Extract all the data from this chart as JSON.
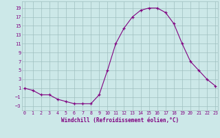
{
  "x": [
    0,
    1,
    2,
    3,
    4,
    5,
    6,
    7,
    8,
    9,
    10,
    11,
    12,
    13,
    14,
    15,
    16,
    17,
    18,
    19,
    20,
    21,
    22,
    23
  ],
  "y": [
    1,
    0.5,
    -0.5,
    -0.5,
    -1.5,
    -2,
    -2.5,
    -2.5,
    -2.5,
    -0.5,
    5,
    11,
    14.5,
    17,
    18.5,
    19,
    19,
    18,
    15.5,
    11,
    7,
    5,
    3,
    1.5
  ],
  "line_color": "#800080",
  "marker": "+",
  "bg_color": "#cce8e8",
  "grid_color": "#9fbfbf",
  "xlabel": "Windchill (Refroidissement éolien,°C)",
  "xlabel_color": "#800080",
  "tick_color": "#800080",
  "yticks": [
    -3,
    -1,
    1,
    3,
    5,
    7,
    9,
    11,
    13,
    15,
    17,
    19
  ],
  "xticks": [
    0,
    1,
    2,
    3,
    4,
    5,
    6,
    7,
    8,
    9,
    10,
    11,
    12,
    13,
    14,
    15,
    16,
    17,
    18,
    19,
    20,
    21,
    22,
    23
  ],
  "ylim": [
    -4,
    20.5
  ],
  "xlim": [
    -0.3,
    23.3
  ]
}
